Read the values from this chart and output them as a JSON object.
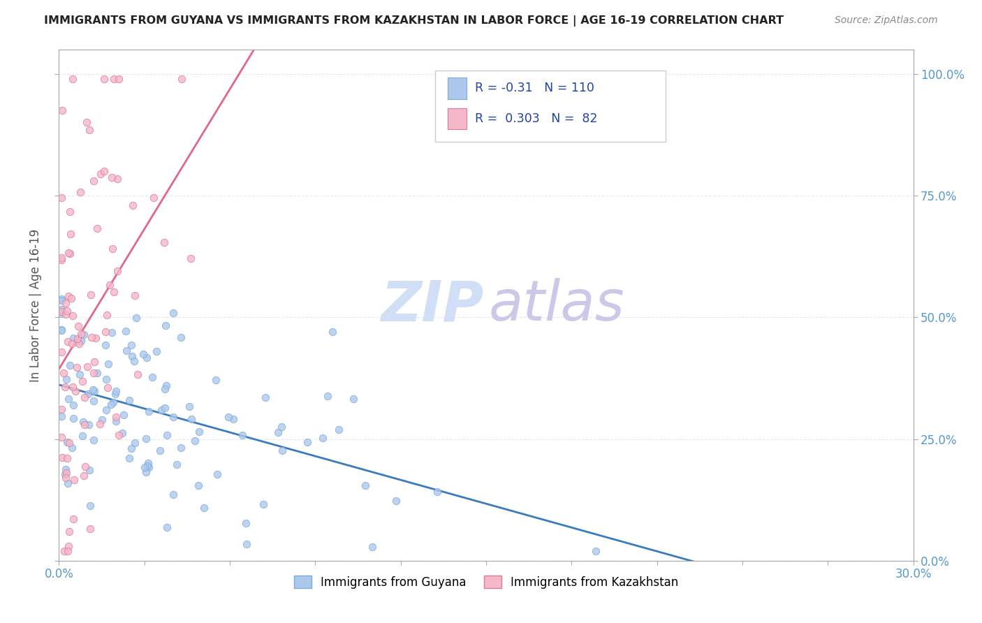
{
  "title": "IMMIGRANTS FROM GUYANA VS IMMIGRANTS FROM KAZAKHSTAN IN LABOR FORCE | AGE 16-19 CORRELATION CHART",
  "source": "Source: ZipAtlas.com",
  "ylabel_left": "In Labor Force | Age 16-19",
  "ylabel_right_labels": [
    "0.0%",
    "25.0%",
    "50.0%",
    "75.0%",
    "100.0%"
  ],
  "ylabel_right_values": [
    0.0,
    0.25,
    0.5,
    0.75,
    1.0
  ],
  "xmin": 0.0,
  "xmax": 0.3,
  "ymin": 0.0,
  "ymax": 1.05,
  "guyana_R": -0.31,
  "guyana_N": 110,
  "kazakhstan_R": 0.303,
  "kazakhstan_N": 82,
  "guyana_color": "#adc8ed",
  "guyana_edge": "#7aabdb",
  "guyana_trend_color": "#3a7bbf",
  "kazakhstan_color": "#f5b8c8",
  "kazakhstan_edge": "#e07898",
  "kazakhstan_trend_color": "#e06888",
  "kazakhstan_trend_dash_color": "#f0a0b8",
  "watermark_zip_color": "#d0dff5",
  "watermark_atlas_color": "#ccc8e8",
  "title_color": "#222222",
  "tick_label_color": "#5599cc",
  "axis_color": "#aaaaaa",
  "grid_color": "#e8e8e8"
}
